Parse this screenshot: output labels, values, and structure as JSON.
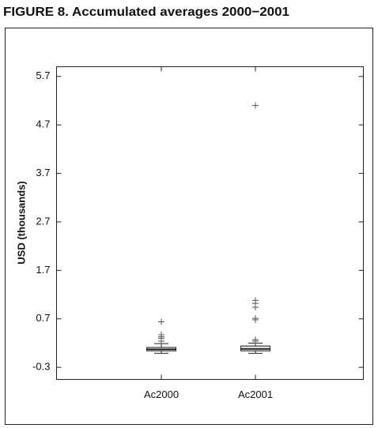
{
  "chart_data": {
    "type": "box",
    "title": "FIGURE 8. Accumulated averages 2000−2001",
    "y_label": "USD (thousands)",
    "categories": [
      "Ac2000",
      "Ac2001"
    ],
    "color": "#555555",
    "boxes": [
      {
        "min": -0.01,
        "q1": 0.04,
        "median": 0.07,
        "q3": 0.11,
        "max": 0.19,
        "outliers": [
          0.64,
          0.37,
          0.33,
          0.3,
          0.24
        ]
      },
      {
        "min": -0.01,
        "q1": 0.04,
        "median": 0.08,
        "q3": 0.14,
        "max": 0.2,
        "outliers": [
          5.1,
          1.08,
          1.02,
          0.94,
          0.71,
          0.68,
          0.27,
          0.24
        ]
      }
    ],
    "ylim": [
      -0.55,
      5.9
    ],
    "yticks": [
      -0.3,
      0.7,
      1.7,
      2.7,
      3.7,
      4.7,
      5.7
    ]
  }
}
